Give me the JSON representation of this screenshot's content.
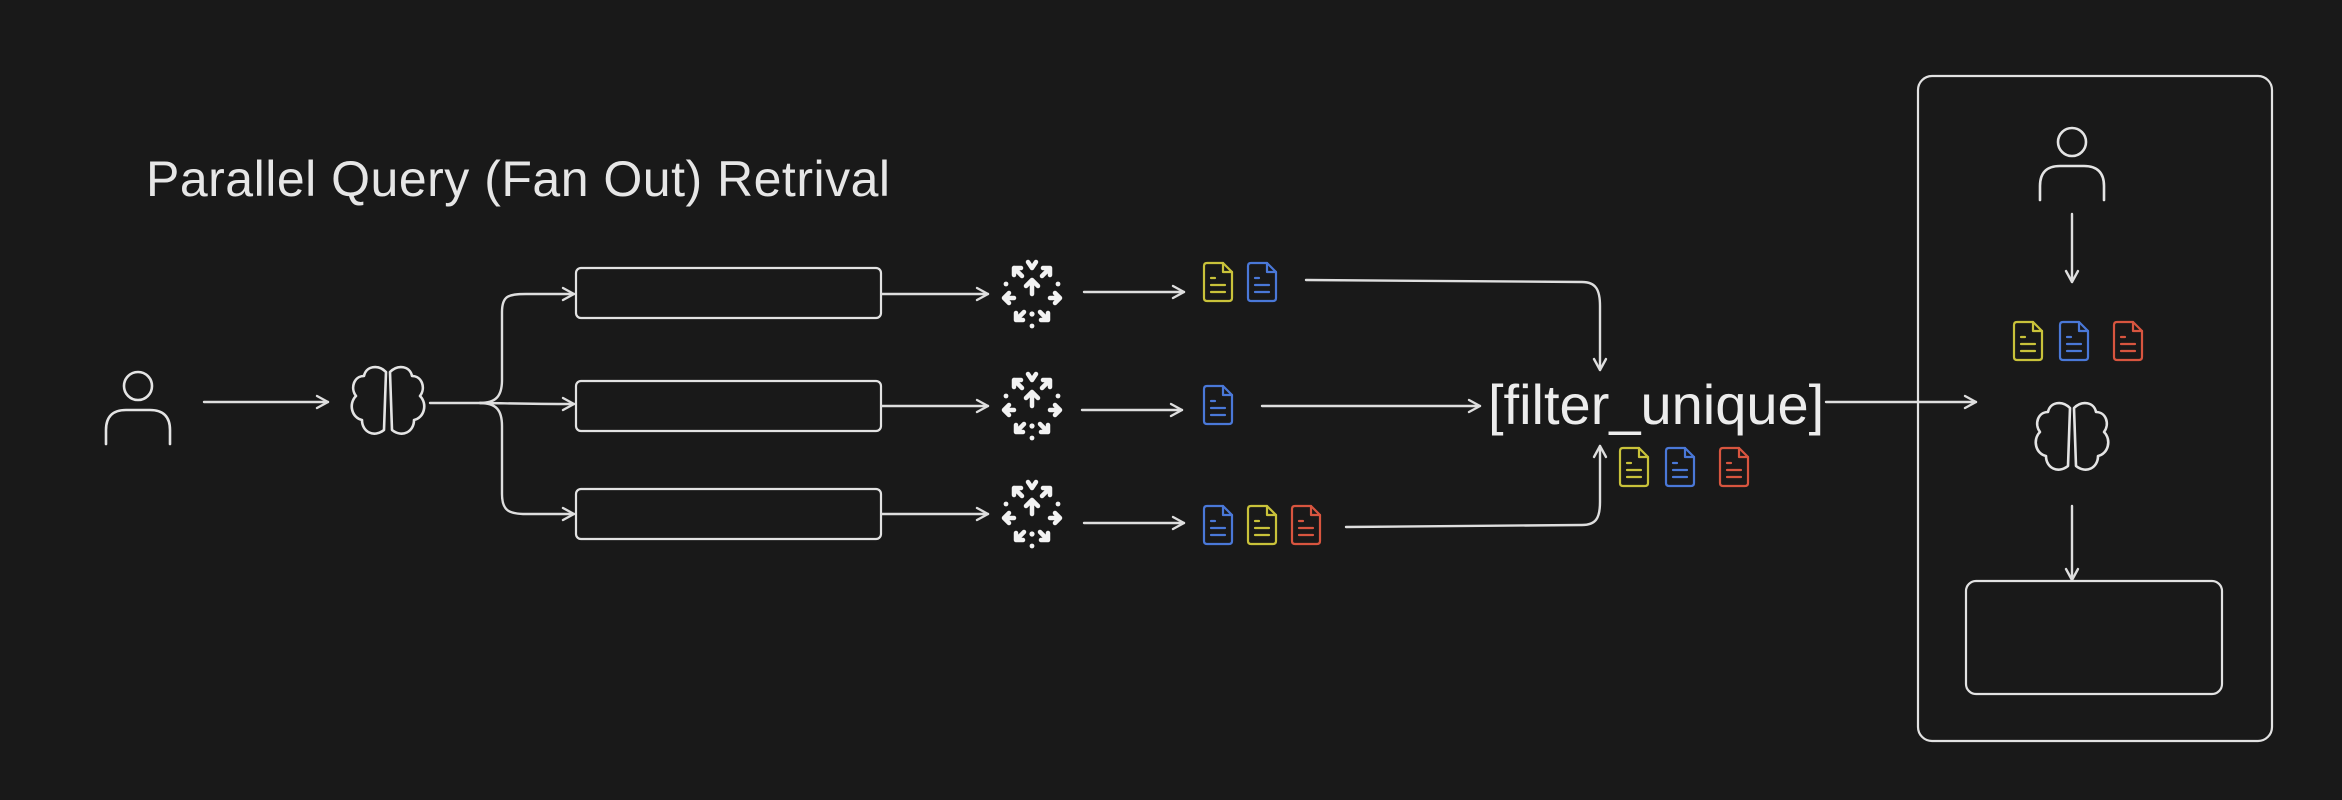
{
  "title": "Parallel Query (Fan Out) Retrival",
  "filter_label": "[filter_unique]",
  "icons": {
    "user": "user-icon",
    "brain": "brain-icon",
    "vector_db": "vector-store-icon",
    "document": "document-icon"
  },
  "colors": {
    "background": "#191919",
    "stroke": "#dedede",
    "doc_yellow": "#c9c23a",
    "doc_blue": "#4a78d8",
    "doc_red": "#d8553f"
  },
  "retrieval_rows": [
    {
      "docs": [
        "doc_yellow",
        "doc_blue"
      ]
    },
    {
      "docs": [
        "doc_blue"
      ]
    },
    {
      "docs": [
        "doc_blue",
        "doc_yellow",
        "doc_red"
      ]
    }
  ],
  "filtered_docs": [
    "doc_yellow",
    "doc_blue",
    "doc_red"
  ],
  "context_docs": [
    "doc_yellow",
    "doc_blue",
    "doc_red"
  ]
}
